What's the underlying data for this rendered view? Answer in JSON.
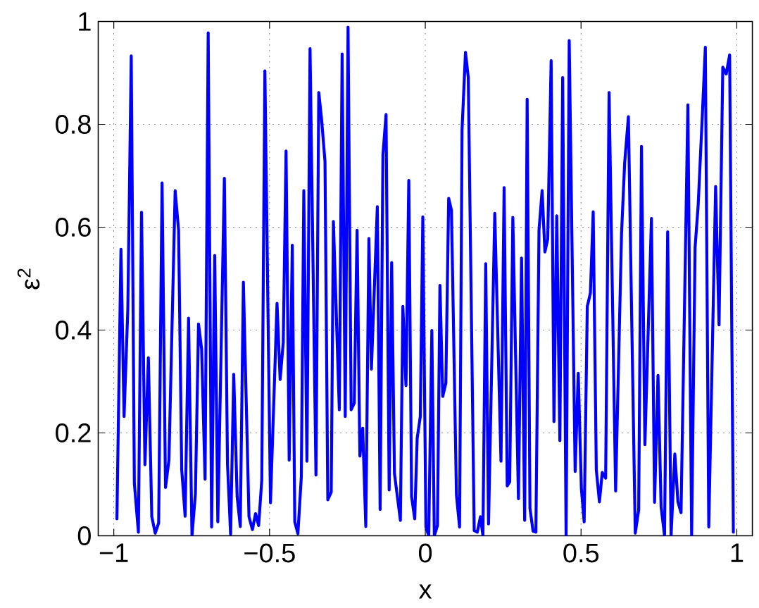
{
  "chart_data": {
    "type": "line",
    "xlabel": "x",
    "ylabel": "ε$^{2}$",
    "xlim": [
      -1.05,
      1.05
    ],
    "ylim": [
      0,
      1
    ],
    "xticks": [
      {
        "value": -1,
        "label": "−1"
      },
      {
        "value": -0.5,
        "label": "−0.5"
      },
      0,
      0.5,
      1
    ],
    "yticks": [
      0,
      0.2,
      0.4,
      0.6,
      0.8,
      1
    ],
    "grid": true,
    "line_style": "solid",
    "series": [
      {
        "color": "#0000ff",
        "x": [
          -0.99,
          -0.977,
          -0.967,
          -0.955,
          -0.944,
          -0.934,
          -0.921,
          -0.911,
          -0.9,
          -0.889,
          -0.878,
          -0.867,
          -0.856,
          -0.845,
          -0.834,
          -0.823,
          -0.803,
          -0.792,
          -0.782,
          -0.771,
          -0.76,
          -0.749,
          -0.738,
          -0.728,
          -0.718,
          -0.707,
          -0.697,
          -0.686,
          -0.676,
          -0.666,
          -0.645,
          -0.635,
          -0.625,
          -0.615,
          -0.604,
          -0.594,
          -0.584,
          -0.566,
          -0.555,
          -0.545,
          -0.535,
          -0.525,
          -0.515,
          -0.497,
          -0.476,
          -0.466,
          -0.456,
          -0.447,
          -0.437,
          -0.427,
          -0.419,
          -0.409,
          -0.398,
          -0.39,
          -0.38,
          -0.37,
          -0.351,
          -0.342,
          -0.333,
          -0.322,
          -0.313,
          -0.302,
          -0.295,
          -0.276,
          -0.267,
          -0.257,
          -0.248,
          -0.238,
          -0.228,
          -0.219,
          -0.21,
          -0.201,
          -0.191,
          -0.181,
          -0.173,
          -0.154,
          -0.145,
          -0.136,
          -0.126,
          -0.116,
          -0.108,
          -0.099,
          -0.08,
          -0.072,
          -0.062,
          -0.053,
          -0.044,
          -0.034,
          -0.026,
          -0.016,
          -0.008,
          0.002,
          0.011,
          0.021,
          0.029,
          0.039,
          0.047,
          0.056,
          0.066,
          0.075,
          0.084,
          0.1,
          0.11,
          0.118,
          0.129,
          0.138,
          0.157,
          0.167,
          0.177,
          0.185,
          0.194,
          0.203,
          0.223,
          0.243,
          0.253,
          0.263,
          0.271,
          0.281,
          0.299,
          0.309,
          0.319,
          0.327,
          0.336,
          0.346,
          0.355,
          0.365,
          0.375,
          0.384,
          0.393,
          0.404,
          0.413,
          0.422,
          0.432,
          0.441,
          0.452,
          0.462,
          0.481,
          0.491,
          0.501,
          0.51,
          0.52,
          0.53,
          0.539,
          0.549,
          0.559,
          0.568,
          0.579,
          0.59,
          0.611,
          0.63,
          0.64,
          0.652,
          0.674,
          0.685,
          0.694,
          0.705,
          0.726,
          0.736,
          0.747,
          0.757,
          0.768,
          0.778,
          0.789,
          0.801,
          0.811,
          0.821,
          0.843,
          0.855,
          0.866,
          0.876,
          0.888,
          0.899,
          0.91,
          0.932,
          0.943,
          0.955,
          0.966,
          0.977,
          0.989
        ],
        "values": [
          0.033,
          0.557,
          0.232,
          0.44,
          0.933,
          0.102,
          0.007,
          0.629,
          0.138,
          0.346,
          0.037,
          0.005,
          0.025,
          0.686,
          0.094,
          0.147,
          0.671,
          0.594,
          0.129,
          0.038,
          0.423,
          0.0,
          0.082,
          0.412,
          0.363,
          0.11,
          0.978,
          0.017,
          0.545,
          0.027,
          0.695,
          0.14,
          0.003,
          0.314,
          0.076,
          0.018,
          0.493,
          0.037,
          0.012,
          0.043,
          0.02,
          0.108,
          0.904,
          0.064,
          0.452,
          0.304,
          0.376,
          0.748,
          0.147,
          0.565,
          0.027,
          0.004,
          0.115,
          0.671,
          0.145,
          0.947,
          0.118,
          0.862,
          0.81,
          0.728,
          0.07,
          0.085,
          0.611,
          0.245,
          0.937,
          0.232,
          0.989,
          0.245,
          0.258,
          0.594,
          0.155,
          0.209,
          0.018,
          0.578,
          0.324,
          0.64,
          0.051,
          0.741,
          0.819,
          0.089,
          0.531,
          0.121,
          0.03,
          0.446,
          0.292,
          0.691,
          0.076,
          0.033,
          0.19,
          0.232,
          0.62,
          0.017,
          0.0,
          0.399,
          0.0,
          0.02,
          0.487,
          0.271,
          0.297,
          0.656,
          0.633,
          0.079,
          0.017,
          0.79,
          0.94,
          0.891,
          0.01,
          0.007,
          0.037,
          0.0,
          0.529,
          0.023,
          0.627,
          0.145,
          0.677,
          0.097,
          0.105,
          0.619,
          0.072,
          0.54,
          0.03,
          0.849,
          0.053,
          0.009,
          0.007,
          0.594,
          0.671,
          0.552,
          0.577,
          0.924,
          0.222,
          0.622,
          0.185,
          0.891,
          0.0,
          0.963,
          0.125,
          0.316,
          0.092,
          0.027,
          0.446,
          0.472,
          0.63,
          0.128,
          0.066,
          0.123,
          0.112,
          0.862,
          0.087,
          0.588,
          0.725,
          0.815,
          0.005,
          0.05,
          0.757,
          0.177,
          0.617,
          0.065,
          0.312,
          0.056,
          0.0,
          0.591,
          0.0,
          0.159,
          0.066,
          0.045,
          0.838,
          0.0,
          0.56,
          0.643,
          0.8,
          0.95,
          0.017,
          0.679,
          0.41,
          0.911,
          0.898,
          0.935,
          0.007
        ]
      }
    ]
  }
}
